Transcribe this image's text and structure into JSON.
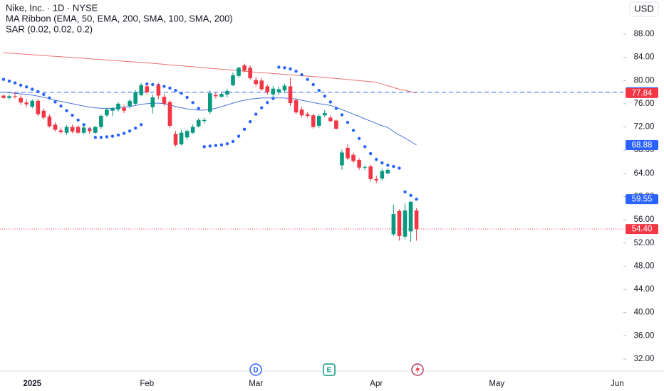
{
  "header": {
    "title": "Nike, Inc. · 1D · NYSE",
    "indicators": [
      "MA Ribbon (EMA, 50, EMA, 200, SMA, 100, SMA, 200)",
      "SAR (0.02, 0.02, 0.2)"
    ],
    "currency": "USD"
  },
  "events": [
    "D",
    "E"
  ],
  "chart_data": {
    "type": "candlestick",
    "categories": [
      null,
      null,
      null,
      null,
      null,
      "2025",
      null,
      null,
      null,
      null,
      null,
      null,
      null,
      null,
      null,
      null,
      null,
      null,
      null,
      null,
      null,
      null,
      null,
      null,
      null,
      "Feb",
      null,
      null,
      null,
      null,
      null,
      null,
      null,
      null,
      null,
      null,
      null,
      null,
      null,
      null,
      null,
      null,
      null,
      null,
      "Mar",
      null,
      null,
      null,
      null,
      null,
      null,
      null,
      null,
      null,
      null,
      null,
      null,
      null,
      null,
      null,
      null,
      null,
      null,
      null,
      null,
      "Apr",
      null,
      null,
      null,
      null,
      null,
      null,
      null,
      null,
      null,
      null,
      null,
      null,
      null,
      null,
      null,
      null,
      null,
      null,
      null,
      null,
      "May",
      null,
      null,
      null,
      null,
      null,
      null,
      null,
      null,
      null,
      null,
      null,
      null,
      null,
      null,
      null,
      null,
      null,
      null,
      null,
      null,
      "Jun"
    ],
    "up_color": "#089981",
    "down_color": "#f23645",
    "open": [
      77.4,
      77.0,
      77.3,
      77.0,
      76.2,
      75.5,
      76.5,
      74.8,
      73.8,
      72.4,
      71.4,
      71.0,
      72.0,
      72.0,
      71.0,
      71.6,
      71.0,
      72.0,
      74.0,
      74.8,
      75.0,
      75.3,
      75.6,
      76.0,
      77.5,
      79.0,
      75.4,
      79.2,
      77.2,
      76.3,
      70.8,
      69.0,
      70.2,
      71.0,
      72.1,
      73.0,
      74.6,
      77.5,
      77.2,
      77.6,
      79.2,
      80.8,
      82.6,
      82.2,
      80.1,
      80.0,
      79.0,
      77.6,
      78.0,
      78.3,
      79.0,
      76.6,
      75.0,
      74.2,
      74.0,
      72.2,
      74.0,
      73.6,
      73.1,
      65.4,
      68.4,
      67.2,
      66.3,
      65.0,
      65.2,
      63.0,
      63.1,
      64.0,
      53.5,
      57.5,
      53.1,
      54.0,
      57.6,
      null,
      null,
      null,
      null,
      null,
      null,
      null,
      null,
      null,
      null,
      null,
      null,
      null,
      null,
      null,
      null,
      null,
      null,
      null,
      null,
      null,
      null,
      null,
      null,
      null,
      null,
      null,
      null,
      null,
      null,
      null,
      null,
      null,
      null,
      null
    ],
    "high": [
      77.6,
      77.6,
      78.0,
      77.5,
      76.8,
      76.8,
      76.8,
      75.2,
      74.2,
      72.8,
      71.9,
      72.3,
      72.4,
      72.3,
      72.2,
      72.0,
      72.2,
      74.2,
      75.3,
      75.4,
      76.3,
      75.8,
      76.8,
      78.4,
      79.6,
      79.4,
      77.6,
      79.6,
      77.7,
      76.6,
      71.3,
      71.5,
      71.5,
      72.4,
      73.5,
      73.6,
      78.3,
      78.0,
      78.0,
      78.6,
      81.4,
      82.4,
      82.9,
      82.6,
      80.6,
      80.4,
      79.3,
      79.1,
      78.9,
      79.5,
      80.5,
      77.0,
      75.5,
      74.6,
      74.3,
      74.2,
      74.9,
      74.0,
      73.3,
      68.1,
      69.0,
      67.6,
      66.6,
      65.4,
      65.5,
      63.6,
      64.8,
      64.9,
      58.6,
      57.8,
      58.8,
      59.2,
      58.0,
      null,
      null,
      null,
      null,
      null,
      null,
      null,
      null,
      null,
      null,
      null,
      null,
      null,
      null,
      null,
      null,
      null,
      null,
      null,
      null,
      null,
      null,
      null,
      null,
      null,
      null,
      null,
      null,
      null,
      null,
      null,
      null,
      null,
      null,
      null
    ],
    "low": [
      76.8,
      76.7,
      76.9,
      75.8,
      75.4,
      75.2,
      73.9,
      73.3,
      71.9,
      71.2,
      70.8,
      70.6,
      70.9,
      70.8,
      70.7,
      70.8,
      70.8,
      71.6,
      73.7,
      73.9,
      74.6,
      74.4,
      75.2,
      75.8,
      77.3,
      77.6,
      74.3,
      76.8,
      75.6,
      71.8,
      68.6,
      68.8,
      69.8,
      70.8,
      71.9,
      72.6,
      74.2,
      76.9,
      77.0,
      77.1,
      79.0,
      80.5,
      81.4,
      80.1,
      79.0,
      78.2,
      77.6,
      77.2,
      77.5,
      77.8,
      75.6,
      74.2,
      73.6,
      73.6,
      71.7,
      71.8,
      73.7,
      72.8,
      71.5,
      64.6,
      66.3,
      65.8,
      64.6,
      64.6,
      62.6,
      62.3,
      62.8,
      63.8,
      53.2,
      52.4,
      52.6,
      52.2,
      52.4,
      null,
      null,
      null,
      null,
      null,
      null,
      null,
      null,
      null,
      null,
      null,
      null,
      null,
      null,
      null,
      null,
      null,
      null,
      null,
      null,
      null,
      null,
      null,
      null,
      null,
      null,
      null,
      null,
      null,
      null,
      null,
      null,
      null,
      null,
      null
    ],
    "close": [
      77.0,
      77.3,
      77.2,
      76.2,
      75.9,
      76.5,
      74.2,
      73.6,
      72.1,
      71.5,
      71.1,
      72.0,
      71.2,
      71.0,
      71.9,
      71.3,
      72.0,
      73.9,
      75.0,
      75.2,
      76.0,
      74.8,
      76.5,
      78.0,
      79.2,
      78.0,
      77.1,
      77.4,
      76.0,
      72.2,
      68.9,
      71.0,
      71.3,
      72.0,
      73.2,
      73.2,
      77.8,
      77.3,
      77.7,
      78.2,
      80.9,
      82.2,
      81.7,
      80.4,
      79.4,
      78.5,
      78.0,
      78.6,
      78.5,
      79.1,
      76.1,
      74.5,
      74.0,
      73.9,
      72.0,
      73.9,
      74.4,
      73.0,
      71.7,
      67.6,
      66.6,
      66.1,
      65.0,
      65.1,
      63.0,
      62.8,
      64.4,
      64.6,
      57.0,
      53.2,
      57.6,
      59.1,
      54.4,
      null,
      null,
      null,
      null,
      null,
      null,
      null,
      null,
      null,
      null,
      null,
      null,
      null,
      null,
      null,
      null,
      null,
      null,
      null,
      null,
      null,
      null,
      null,
      null,
      null,
      null,
      null,
      null,
      null,
      null,
      null,
      null,
      null,
      null,
      null
    ],
    "overlays": [
      {
        "kind": "line",
        "color": "#f07070",
        "values": [
          84.8,
          84.73,
          84.66,
          84.59,
          84.52,
          84.45,
          84.38,
          84.31,
          84.24,
          84.17,
          84.1,
          84.03,
          83.96,
          83.89,
          83.82,
          83.75,
          83.68,
          83.61,
          83.54,
          83.47,
          83.4,
          83.33,
          83.26,
          83.19,
          83.12,
          83.05,
          82.96,
          82.88,
          82.79,
          82.71,
          82.62,
          82.54,
          82.45,
          82.37,
          82.28,
          82.2,
          82.11,
          82.03,
          81.94,
          81.86,
          81.77,
          81.69,
          81.6,
          81.52,
          81.43,
          81.36,
          81.28,
          81.21,
          81.13,
          81.06,
          80.98,
          80.91,
          80.83,
          80.76,
          80.68,
          80.61,
          80.53,
          80.44,
          80.35,
          80.26,
          80.17,
          80.08,
          79.99,
          79.9,
          79.8,
          79.7,
          79.4,
          79.1,
          78.8,
          78.5,
          78.3,
          78.1,
          77.84,
          null,
          null,
          null,
          null,
          null,
          null,
          null,
          null,
          null,
          null,
          null,
          null,
          null,
          null,
          null,
          null,
          null,
          null,
          null,
          null,
          null,
          null,
          null,
          null,
          null,
          null,
          null,
          null,
          null,
          null,
          null,
          null,
          null,
          null,
          null
        ]
      },
      {
        "kind": "line",
        "color": "#4a72d6",
        "values": [
          78.0,
          77.9,
          77.8,
          77.7,
          77.6,
          77.5,
          77.3,
          77.1,
          76.9,
          76.6,
          76.4,
          76.2,
          76.0,
          75.8,
          75.6,
          75.4,
          75.3,
          75.2,
          75.2,
          75.2,
          75.3,
          75.4,
          75.5,
          75.7,
          75.9,
          76.0,
          76.1,
          76.1,
          76.0,
          75.8,
          75.5,
          75.3,
          75.1,
          75.0,
          74.9,
          74.9,
          75.0,
          75.2,
          75.5,
          75.8,
          76.1,
          76.4,
          76.6,
          76.8,
          76.9,
          77.0,
          77.0,
          77.0,
          77.0,
          77.0,
          76.9,
          76.8,
          76.6,
          76.4,
          76.2,
          76.0,
          75.9,
          75.7,
          75.4,
          75.0,
          74.6,
          74.2,
          73.8,
          73.4,
          73.0,
          72.6,
          72.2,
          71.9,
          71.2,
          70.6,
          70.1,
          69.5,
          68.88,
          null,
          null,
          null,
          null,
          null,
          null,
          null,
          null,
          null,
          null,
          null,
          null,
          null,
          null,
          null,
          null,
          null,
          null,
          null,
          null,
          null,
          null,
          null,
          null,
          null,
          null,
          null,
          null,
          null,
          null,
          null,
          null,
          null,
          null,
          null
        ]
      },
      {
        "kind": "dots",
        "color": "#2962ff",
        "values": [
          80.2,
          79.9,
          79.6,
          79.2,
          78.9,
          78.5,
          78.1,
          77.6,
          77.0,
          76.3,
          75.6,
          74.8,
          74.0,
          73.2,
          72.4,
          71.6,
          70.2,
          70.2,
          70.3,
          70.4,
          70.6,
          70.9,
          71.3,
          71.8,
          72.4,
          79.4,
          79.3,
          79.2,
          79.0,
          78.7,
          78.3,
          77.8,
          77.1,
          76.2,
          75.2,
          68.6,
          68.7,
          68.8,
          68.9,
          69.1,
          69.5,
          70.4,
          71.6,
          72.9,
          74.2,
          75.3,
          76.2,
          76.9,
          82.3,
          82.2,
          82.0,
          81.6,
          81.0,
          80.2,
          79.3,
          78.3,
          77.3,
          76.3,
          75.2,
          74.1,
          72.8,
          71.4,
          70.0,
          68.6,
          67.4,
          66.4,
          65.8,
          65.4,
          65.2,
          64.9,
          60.8,
          60.2,
          59.55,
          null,
          null,
          null,
          null,
          null,
          null,
          null,
          null,
          null,
          null,
          null,
          null,
          null,
          null,
          null,
          null,
          null,
          null,
          null,
          null,
          null,
          null,
          null,
          null,
          null,
          null,
          null,
          null,
          null,
          null,
          null,
          null,
          null,
          null,
          null
        ]
      }
    ],
    "price_labels": [
      {
        "value": 77.98,
        "color": "#2962ff",
        "line": "dashed"
      },
      {
        "value": 77.84,
        "color": "#f23645"
      },
      {
        "value": 68.88,
        "color": "#2962ff"
      },
      {
        "value": 59.55,
        "color": "#2962ff"
      },
      {
        "value": 54.4,
        "label": "54.40",
        "color": "#f23645",
        "line": "dotted"
      }
    ],
    "ylim": [
      30.16,
      93.88
    ],
    "yticks": [
      {
        "value": 32,
        "label": "32.00"
      },
      {
        "value": 36,
        "label": "36.00"
      },
      {
        "value": 40,
        "label": "40.00"
      },
      {
        "value": 44,
        "label": "44.00"
      },
      {
        "value": 48,
        "label": "48.00"
      },
      {
        "value": 52,
        "label": "52.00"
      },
      {
        "value": 56,
        "label": "56.00"
      },
      {
        "value": 60,
        "label": "60.00"
      },
      {
        "value": 64,
        "label": "64.00"
      },
      {
        "value": 68,
        "label": "68.00"
      },
      {
        "value": 72,
        "label": "72.00"
      },
      {
        "value": 76,
        "label": "76.00"
      },
      {
        "value": 80,
        "label": "80.00"
      },
      {
        "value": 84,
        "label": "84.00"
      },
      {
        "value": 88,
        "label": "88.00"
      }
    ],
    "grid": false
  }
}
